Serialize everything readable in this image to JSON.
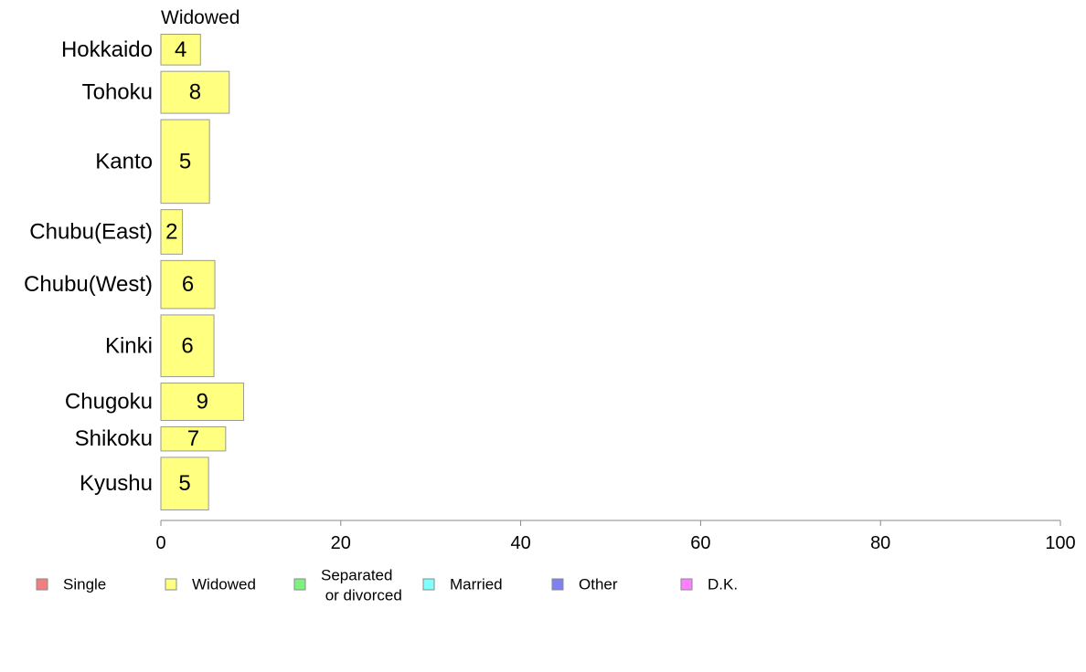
{
  "chart_data": {
    "type": "bar",
    "orientation": "horizontal",
    "panel_title": "Widowed",
    "categories": [
      "Hokkaido",
      "Tohoku",
      "Kanto",
      "Chubu(East)",
      "Chubu(West)",
      "Kinki",
      "Chugoku",
      "Shikoku",
      "Kyushu"
    ],
    "category_weights": [
      0.73,
      0.95,
      1.77,
      1.0,
      1.07,
      1.34,
      0.86,
      0.6,
      1.16
    ],
    "series": [
      {
        "name": "Widowed",
        "values": [
          4.4,
          7.6,
          5.4,
          2.4,
          6.0,
          5.9,
          9.2,
          7.2,
          5.3
        ],
        "labels": [
          "4",
          "8",
          "5",
          "2",
          "6",
          "6",
          "9",
          "7",
          "5"
        ],
        "color": "#ffff80"
      }
    ],
    "xlim": [
      0,
      100
    ],
    "xticks": [
      "0",
      "20",
      "40",
      "60",
      "80",
      "100"
    ],
    "grid": false,
    "legend_position": "bottom",
    "legend": [
      {
        "label": "Single",
        "color": "#f08080"
      },
      {
        "label": "Widowed",
        "color": "#ffff80"
      },
      {
        "label": "Separated\n or divorced",
        "color": "#80f080"
      },
      {
        "label": "Married",
        "color": "#80ffff"
      },
      {
        "label": "Other",
        "color": "#8080f0"
      },
      {
        "label": "D.K.",
        "color": "#ff80ff"
      }
    ]
  }
}
